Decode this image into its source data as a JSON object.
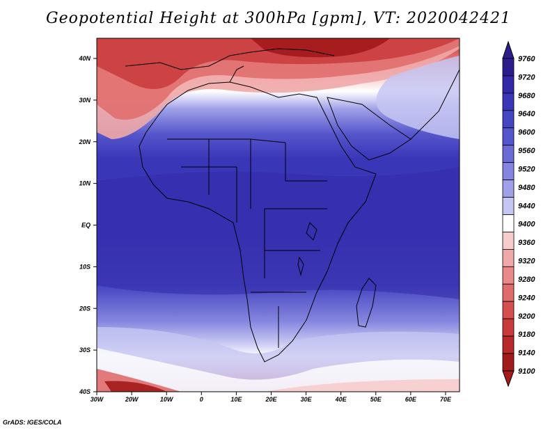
{
  "title": "Geopotential Height at 300hPa [gpm], VT: 2020042421",
  "footer": "GrADS: IGES/COLA",
  "map": {
    "lon_labels": [
      "30W",
      "20W",
      "10W",
      "0",
      "10E",
      "20E",
      "30E",
      "40E",
      "50E",
      "60E",
      "70E"
    ],
    "lat_labels": [
      "40N",
      "30N",
      "20N",
      "10N",
      "EQ",
      "10S",
      "20S",
      "30S",
      "40S"
    ]
  },
  "colorbar": {
    "levels": [
      "9760",
      "9720",
      "9680",
      "9640",
      "9600",
      "9560",
      "9520",
      "9480",
      "9440",
      "9400",
      "9360",
      "9320",
      "9280",
      "9240",
      "9200",
      "9180",
      "9140",
      "9100"
    ],
    "colors": [
      "#2b1e8c",
      "#3329a8",
      "#3a36b8",
      "#4646c2",
      "#5656cc",
      "#6b6bd6",
      "#8585df",
      "#a0a0e8",
      "#c6c6f2",
      "#ffffff",
      "#f7cccc",
      "#f0a9a9",
      "#e98a8a",
      "#e06b6b",
      "#d54f4f",
      "#c93a3a",
      "#b82929",
      "#a31a1a"
    ]
  }
}
